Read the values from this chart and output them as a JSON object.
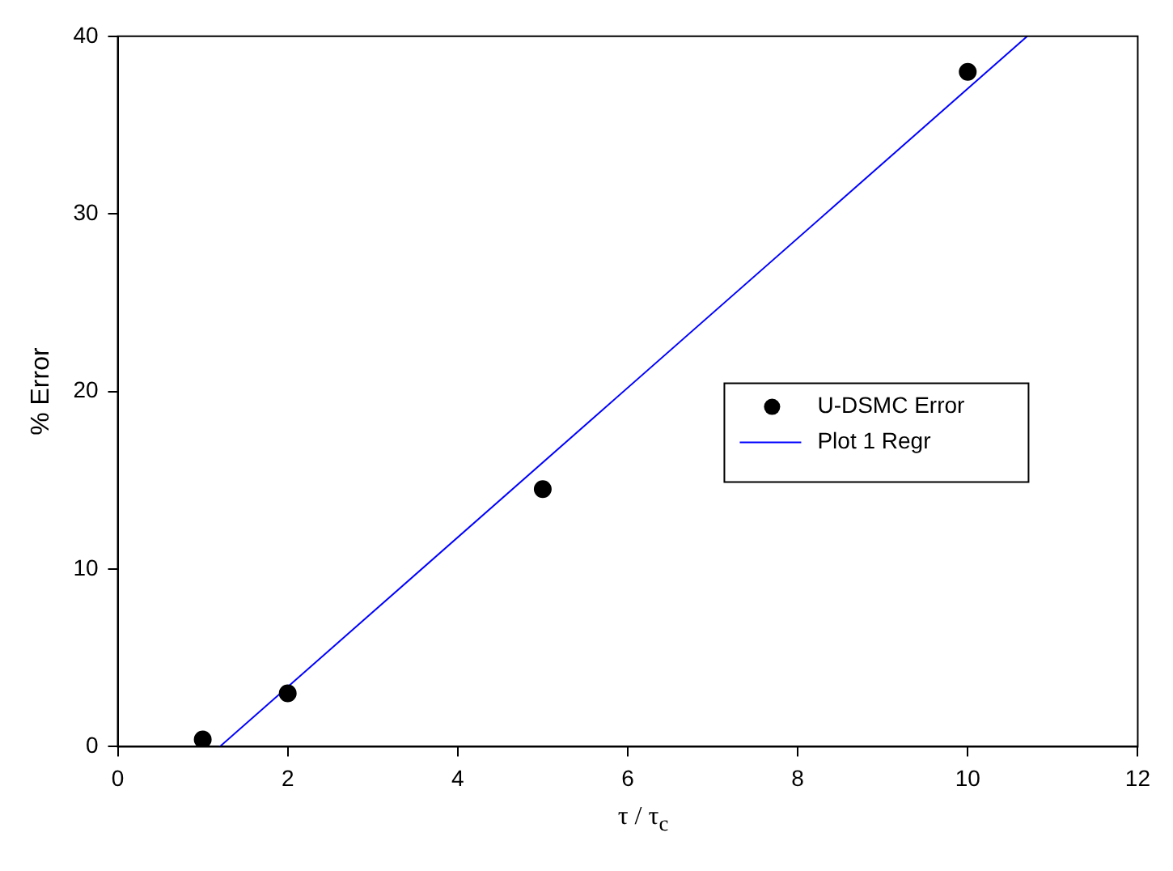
{
  "chart_data": {
    "type": "scatter",
    "xlabel": "τ / τ$_{c}$",
    "ylabel": "% Error",
    "xlim": [
      0,
      12
    ],
    "xticks": [
      0,
      2,
      4,
      6,
      8,
      10,
      12
    ],
    "ylim": [
      0,
      40
    ],
    "yticks": [
      0,
      10,
      20,
      30,
      40
    ],
    "grid": false,
    "legend": "right",
    "marker": "circle",
    "series": [
      {
        "name": "U-DSMC Error",
        "color": "#000000",
        "x": [
          1,
          2,
          5,
          10
        ],
        "values": [
          0.4,
          3,
          14.5,
          38
        ]
      },
      {
        "name": "Plot 1 Regr",
        "type": "line",
        "color": "#0000ff",
        "marker": "none",
        "x": [
          1.2,
          10.7
        ],
        "values": [
          0,
          40
        ]
      }
    ]
  }
}
